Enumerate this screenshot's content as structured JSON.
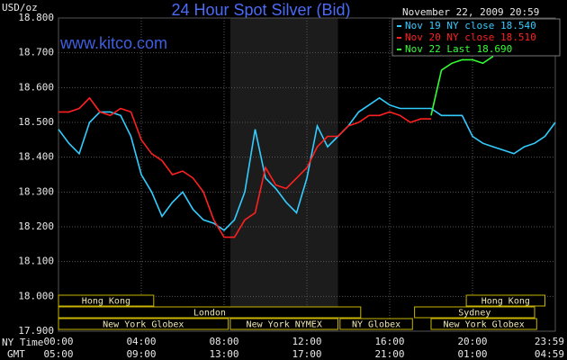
{
  "chart_data": {
    "type": "line",
    "title": "24 Hour Spot Silver (Bid)",
    "watermark": "www.kitco.com",
    "y_unit": "USD/oz",
    "date_label": "November 22, 2009 20:59",
    "x_row_labels": [
      "NY Time",
      "GMT"
    ],
    "xlim": [
      0,
      24
    ],
    "ylim": [
      17.9,
      18.8
    ],
    "grid": true,
    "xticks": [
      {
        "value": 0,
        "label": "00:00"
      },
      {
        "value": 4,
        "label": "04:00"
      },
      {
        "value": 8,
        "label": "08:00"
      },
      {
        "value": 12,
        "label": "12:00"
      },
      {
        "value": 16,
        "label": "16:00"
      },
      {
        "value": 20,
        "label": "20:00"
      },
      {
        "value": 24,
        "label": "23:59"
      }
    ],
    "gmt_ticks": [
      {
        "value": 0,
        "label": "05:00"
      },
      {
        "value": 4,
        "label": "09:00"
      },
      {
        "value": 8,
        "label": "13:00"
      },
      {
        "value": 12,
        "label": "17:00"
      },
      {
        "value": 16,
        "label": "21:00"
      },
      {
        "value": 20,
        "label": "01:00"
      },
      {
        "value": 24,
        "label": "04:59"
      }
    ],
    "yticks": [
      {
        "value": 17.9,
        "label": "17.900"
      },
      {
        "value": 18.0,
        "label": "18.000"
      },
      {
        "value": 18.1,
        "label": "18.100"
      },
      {
        "value": 18.2,
        "label": "18.200"
      },
      {
        "value": 18.3,
        "label": "18.300"
      },
      {
        "value": 18.4,
        "label": "18.400"
      },
      {
        "value": 18.5,
        "label": "18.500"
      },
      {
        "value": 18.6,
        "label": "18.600"
      },
      {
        "value": 18.7,
        "label": "18.700"
      },
      {
        "value": 18.8,
        "label": "18.800"
      }
    ],
    "shaded": [
      8.3,
      13.5
    ],
    "sessions": [
      {
        "name": "Hong Kong",
        "row": 0,
        "start": 0,
        "end": 4.6
      },
      {
        "name": "Hong Kong",
        "row": 0,
        "start": 19.7,
        "end": 23.5
      },
      {
        "name": "London",
        "row": 1,
        "start": 0,
        "end": 14.6
      },
      {
        "name": "Sydney",
        "row": 1,
        "start": 17.2,
        "end": 23.0
      },
      {
        "name": "New York Globex",
        "row": 2,
        "start": 0,
        "end": 8.2
      },
      {
        "name": "New York NYMEX",
        "row": 2,
        "start": 8.3,
        "end": 13.5
      },
      {
        "name": "NY Globex",
        "row": 2,
        "start": 13.6,
        "end": 17.1
      },
      {
        "name": "New York Globex",
        "row": 2,
        "start": 18.0,
        "end": 23.1
      }
    ],
    "x": [
      0,
      0.5,
      1,
      1.5,
      2,
      2.5,
      3,
      3.5,
      4,
      4.5,
      5,
      5.5,
      6,
      6.5,
      7,
      7.5,
      8,
      8.5,
      9,
      9.5,
      10,
      10.5,
      11,
      11.5,
      12,
      12.5,
      13,
      13.5,
      14,
      14.5,
      15,
      15.5,
      16,
      16.5,
      17,
      17.5,
      18,
      18.5,
      19,
      19.5,
      20,
      20.5,
      21,
      21.5,
      22,
      22.5,
      23,
      23.5,
      24
    ],
    "series": [
      {
        "name": "Nov 19 NY close 18.540",
        "color": "#33ccff",
        "values": [
          18.48,
          18.44,
          18.41,
          18.5,
          18.53,
          18.53,
          18.52,
          18.46,
          18.35,
          18.3,
          18.23,
          18.27,
          18.3,
          18.25,
          18.22,
          18.21,
          18.19,
          18.22,
          18.3,
          18.48,
          18.34,
          18.31,
          18.27,
          18.24,
          18.34,
          18.49,
          18.43,
          18.46,
          18.49,
          18.53,
          18.55,
          18.57,
          18.55,
          18.54,
          18.54,
          18.54,
          18.54,
          18.52,
          18.52,
          18.52,
          18.46,
          18.44,
          18.43,
          18.42,
          18.41,
          18.43,
          18.44,
          18.46,
          18.5
        ]
      },
      {
        "name": "Nov 20 NY close 18.510",
        "color": "#ff2020",
        "values": [
          18.53,
          18.53,
          18.54,
          18.57,
          18.53,
          18.52,
          18.54,
          18.53,
          18.45,
          18.41,
          18.39,
          18.35,
          18.36,
          18.34,
          18.3,
          18.22,
          18.17,
          18.17,
          18.22,
          18.24,
          18.37,
          18.32,
          18.31,
          18.34,
          18.37,
          18.43,
          18.46,
          18.46,
          18.49,
          18.5,
          18.52,
          18.52,
          18.53,
          18.52,
          18.5,
          18.51,
          18.51,
          null,
          null,
          null,
          null,
          null,
          null,
          null,
          null,
          null,
          null,
          null,
          null
        ]
      },
      {
        "name": "Nov 22 Last 18.690",
        "color": "#33ff33",
        "values": [
          null,
          null,
          null,
          null,
          null,
          null,
          null,
          null,
          null,
          null,
          null,
          null,
          null,
          null,
          null,
          null,
          null,
          null,
          null,
          null,
          null,
          null,
          null,
          null,
          null,
          null,
          null,
          null,
          null,
          null,
          null,
          null,
          null,
          null,
          null,
          null,
          18.52,
          18.65,
          18.67,
          18.68,
          18.68,
          18.67,
          18.69,
          null,
          null,
          null,
          null,
          null,
          null
        ]
      }
    ]
  }
}
